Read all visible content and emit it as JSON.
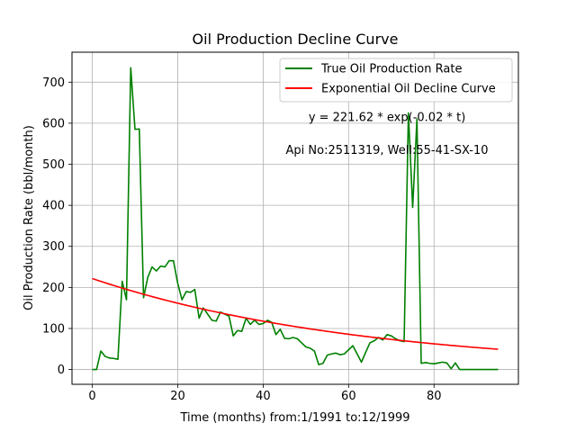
{
  "chart_data": {
    "type": "line",
    "title": "Oil Production Decline Curve",
    "xlabel": "Time (months) from:1/1991 to:12/1999",
    "ylabel": "Oil Production Rate (bbl/month)",
    "xlim": [
      -4.75,
      99.75
    ],
    "ylim": [
      -36,
      773
    ],
    "xticks": [
      0,
      20,
      40,
      60,
      80
    ],
    "yticks": [
      0,
      100,
      200,
      300,
      400,
      500,
      600,
      700
    ],
    "grid": true,
    "legend_position": "top-right",
    "annotations": [
      {
        "text": "y = 221.62 * exp(-0.02 * t)",
        "x": 69,
        "y": 605
      },
      {
        "text": "Api No:2511319, Well:55-41-SX-10",
        "x": 69,
        "y": 525
      }
    ],
    "series": [
      {
        "name": "True Oil Production Rate",
        "color": "#008000",
        "x": [
          0,
          1,
          2,
          3,
          4,
          5,
          6,
          7,
          8,
          9,
          10,
          11,
          12,
          13,
          14,
          15,
          16,
          17,
          18,
          19,
          20,
          21,
          22,
          23,
          24,
          25,
          26,
          27,
          28,
          29,
          30,
          31,
          32,
          33,
          34,
          35,
          36,
          37,
          38,
          39,
          40,
          41,
          42,
          43,
          44,
          45,
          46,
          47,
          48,
          49,
          50,
          51,
          52,
          53,
          54,
          55,
          56,
          57,
          58,
          59,
          60,
          61,
          62,
          63,
          64,
          65,
          66,
          67,
          68,
          69,
          70,
          71,
          72,
          73,
          74,
          75,
          76,
          77,
          78,
          79,
          80,
          81,
          82,
          83,
          84,
          85,
          86,
          87,
          88,
          89,
          90,
          91,
          92,
          93,
          94,
          95
        ],
        "y": [
          0,
          0,
          45,
          32,
          28,
          27,
          25,
          215,
          170,
          735,
          585,
          586,
          175,
          225,
          250,
          240,
          252,
          250,
          265,
          265,
          210,
          170,
          190,
          188,
          195,
          125,
          150,
          135,
          120,
          118,
          140,
          135,
          130,
          82,
          95,
          93,
          125,
          110,
          120,
          110,
          112,
          120,
          115,
          85,
          98,
          76,
          75,
          78,
          75,
          65,
          55,
          52,
          45,
          12,
          15,
          35,
          38,
          40,
          36,
          38,
          48,
          58,
          38,
          18,
          42,
          65,
          70,
          78,
          72,
          85,
          82,
          75,
          70,
          68,
          625,
          395,
          610,
          15,
          17,
          15,
          14,
          16,
          18,
          16,
          2,
          16,
          0,
          0,
          0,
          0,
          0,
          0,
          0,
          0,
          0,
          0
        ]
      },
      {
        "name": "Exponential Oil Decline Curve",
        "color": "#ff0000",
        "function": {
          "a": 221.62,
          "b": -0.0158,
          "t_start": 0,
          "t_end": 95
        }
      }
    ]
  }
}
